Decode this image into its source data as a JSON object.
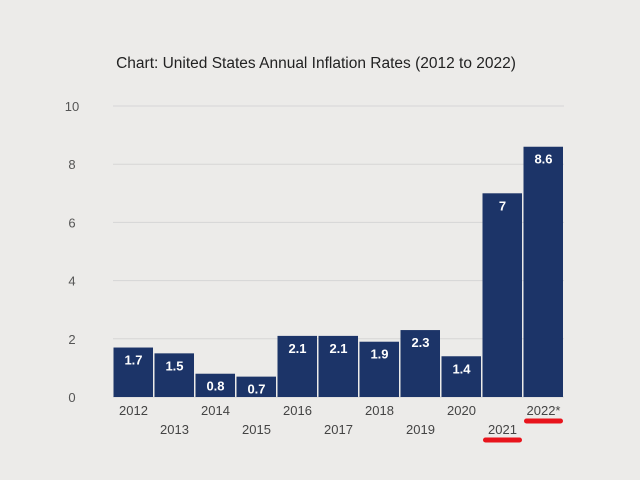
{
  "chart_data": {
    "type": "bar",
    "title": "Chart: United States Annual Inflation Rates (2012 to 2022)",
    "xlabel": "",
    "ylabel": "",
    "ylim": [
      0,
      10
    ],
    "yticks": [
      "0",
      "2",
      "4",
      "6",
      "8",
      "10"
    ],
    "categories": [
      "2012",
      "2013",
      "2014",
      "2015",
      "2016",
      "2017",
      "2018",
      "2019",
      "2020",
      "2021",
      "2022*"
    ],
    "values": [
      1.7,
      1.5,
      0.8,
      0.7,
      2.1,
      2.1,
      1.9,
      2.3,
      1.4,
      7,
      8.6
    ],
    "value_labels": [
      "1.7",
      "1.5",
      "0.8",
      "0.7",
      "2.1",
      "2.1",
      "1.9",
      "2.3",
      "1.4",
      "7",
      "8.6"
    ],
    "grid": true,
    "bar_color": "#1c3468",
    "highlight_color": "#e8141c",
    "highlighted_categories": [
      "2021",
      "2022*"
    ]
  }
}
